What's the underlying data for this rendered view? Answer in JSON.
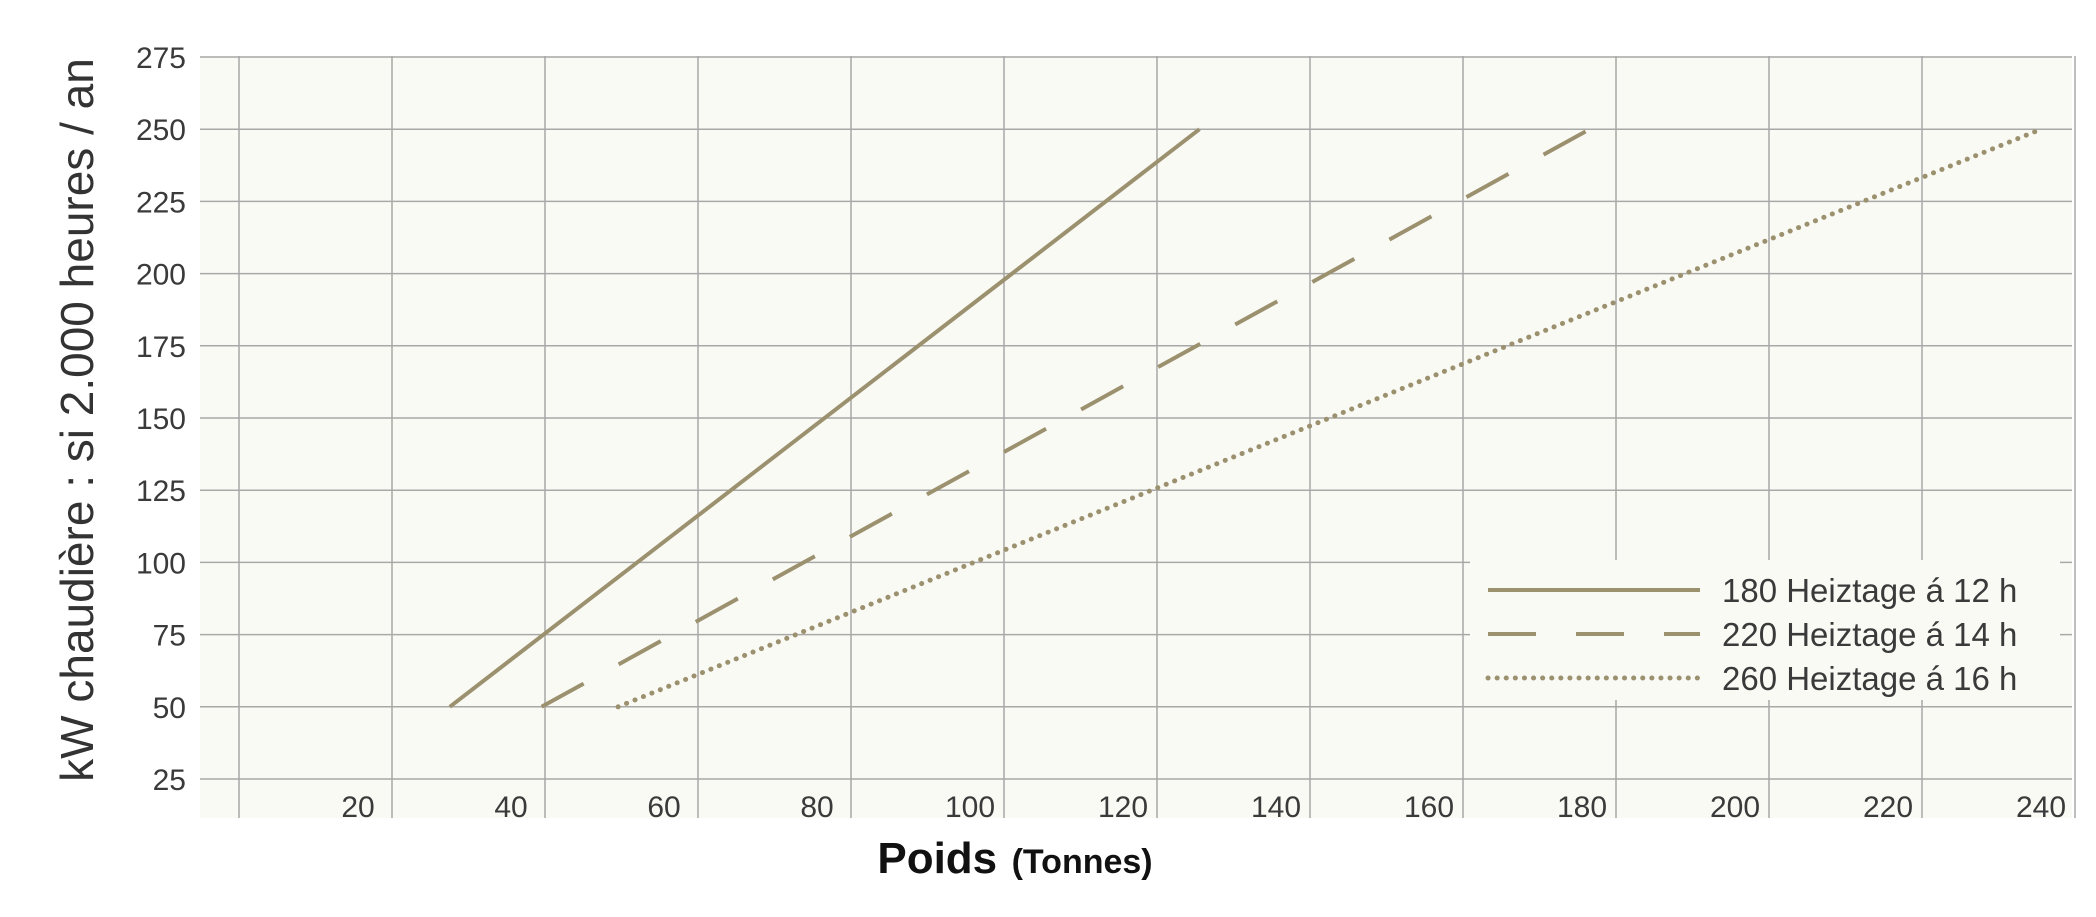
{
  "chart_data": {
    "type": "line",
    "xlabel": "Poids",
    "xlabel_unit": "(Tonnes)",
    "ylabel": "kW chaudière : si 2.000 heures / an",
    "x_ticks": [
      "20",
      "40",
      "60",
      "80",
      "100",
      "120",
      "140",
      "160",
      "180",
      "200",
      "220",
      "240"
    ],
    "y_ticks": [
      "25",
      "50",
      "75",
      "100",
      "125",
      "150",
      "175",
      "200",
      "225",
      "250",
      "275"
    ],
    "xlim": [
      0,
      240
    ],
    "ylim": [
      25,
      275
    ],
    "grid": true,
    "legend_position": "bottom-right",
    "colors": {
      "line": "#9c916f",
      "plot_bg": "#fafaf5",
      "grid": "#a8a8a8"
    },
    "series": [
      {
        "name": "180 Heiztage á 12 h",
        "style": "solid",
        "x": [
          32,
          130
        ],
        "y": [
          50,
          250
        ]
      },
      {
        "name": "220 Heiztage á 14 h",
        "style": "dashed",
        "x": [
          44,
          181
        ],
        "y": [
          50,
          250
        ]
      },
      {
        "name": "260 Heiztage á 16 h",
        "style": "dotted",
        "x": [
          54,
          240
        ],
        "y": [
          50,
          250
        ]
      }
    ]
  }
}
